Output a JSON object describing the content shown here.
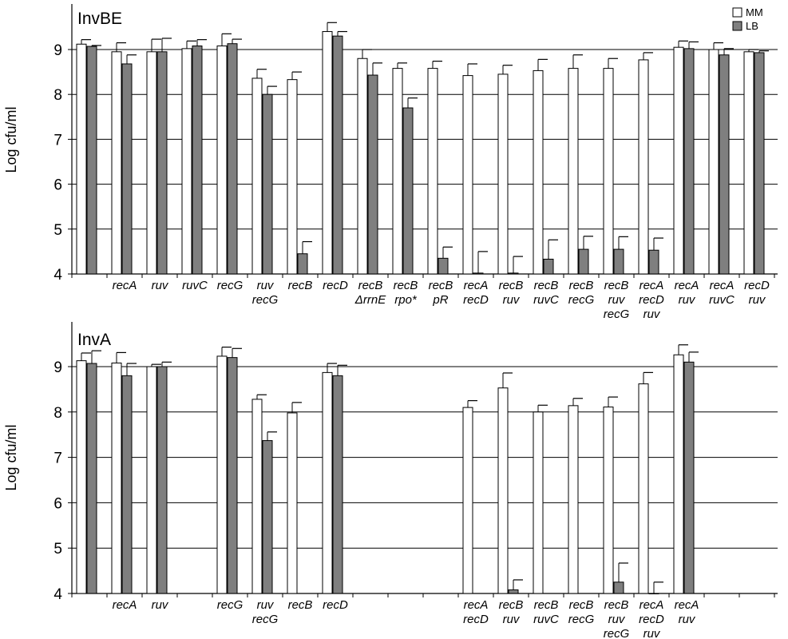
{
  "chart_data": [
    {
      "type": "bar",
      "title": "InvBE",
      "ylabel": "Log cfu/ml",
      "ylim": [
        4,
        10
      ],
      "yticks": [
        4,
        5,
        6,
        7,
        8,
        9
      ],
      "grid": true,
      "legend_position": "top-right",
      "series_colors": [
        "#ffffff",
        "#7f7f7f"
      ],
      "categories": [
        [
          ""
        ],
        [
          "recA"
        ],
        [
          "ruv"
        ],
        [
          "ruvC"
        ],
        [
          "recG"
        ],
        [
          "ruv",
          "recG"
        ],
        [
          "recB"
        ],
        [
          "recD"
        ],
        [
          "recB",
          "ΔrrnE"
        ],
        [
          "recB",
          "rpo*"
        ],
        [
          "recB",
          "pR"
        ],
        [
          "recA",
          "recD"
        ],
        [
          "recB",
          "ruv"
        ],
        [
          "recB",
          "ruvC"
        ],
        [
          "recB",
          "recG"
        ],
        [
          "recB",
          "ruv",
          "recG"
        ],
        [
          "recA",
          "recD",
          "ruv"
        ],
        [
          "recA",
          "ruv"
        ],
        [
          "recA",
          "ruvC"
        ],
        [
          "recD",
          "ruv"
        ]
      ],
      "series": [
        {
          "name": "MM",
          "values": [
            9.12,
            8.95,
            8.95,
            9.02,
            9.08,
            8.36,
            8.33,
            9.4,
            8.8,
            8.58,
            8.58,
            8.42,
            8.45,
            8.53,
            8.58,
            8.58,
            8.77,
            9.05,
            9.0,
            8.95
          ],
          "errors": [
            0.1,
            0.2,
            0.28,
            0.17,
            0.27,
            0.2,
            0.17,
            0.2,
            0.2,
            0.12,
            0.16,
            0.26,
            0.2,
            0.25,
            0.3,
            0.22,
            0.16,
            0.14,
            0.15,
            0.05
          ]
        },
        {
          "name": "LB",
          "values": [
            9.07,
            8.68,
            8.95,
            9.08,
            9.13,
            8.0,
            4.45,
            9.3,
            8.43,
            7.7,
            4.35,
            4.02,
            4.02,
            4.33,
            4.55,
            4.55,
            4.53,
            9.02,
            8.88,
            8.93
          ],
          "errors": [
            0.02,
            0.2,
            0.3,
            0.14,
            0.1,
            0.18,
            0.27,
            0.1,
            0.27,
            0.22,
            0.25,
            0.48,
            0.37,
            0.43,
            0.29,
            0.28,
            0.27,
            0.15,
            0.14,
            0.04
          ]
        }
      ]
    },
    {
      "type": "bar",
      "title": "InvA",
      "ylabel": "Log cfu/ml",
      "ylim": [
        4,
        9.9
      ],
      "yticks": [
        4,
        5,
        6,
        7,
        8,
        9
      ],
      "grid": true,
      "series_colors": [
        "#ffffff",
        "#7f7f7f"
      ],
      "categories": [
        [
          ""
        ],
        [
          "recA"
        ],
        [
          "ruv"
        ],
        [
          ""
        ],
        [
          "recG"
        ],
        [
          "ruv",
          "recG"
        ],
        [
          "recB"
        ],
        [
          "recD"
        ],
        [
          ""
        ],
        [
          ""
        ],
        [
          ""
        ],
        [
          "recA",
          "recD"
        ],
        [
          "recB",
          "ruv"
        ],
        [
          "recB",
          "ruvC"
        ],
        [
          "recB",
          "recG"
        ],
        [
          "recB",
          "ruv",
          "recG"
        ],
        [
          "recA",
          "recD",
          "ruv"
        ],
        [
          "recA",
          "ruv"
        ],
        [
          ""
        ],
        [
          ""
        ]
      ],
      "series": [
        {
          "name": "MM",
          "values": [
            9.13,
            9.08,
            9.0,
            null,
            9.23,
            8.28,
            7.98,
            8.87,
            null,
            null,
            null,
            8.1,
            8.53,
            8.0,
            8.14,
            8.11,
            8.62,
            9.26,
            null,
            null
          ],
          "errors": [
            0.17,
            0.23,
            0.05,
            null,
            0.2,
            0.1,
            0.23,
            0.2,
            null,
            null,
            null,
            0.15,
            0.33,
            0.15,
            0.16,
            0.22,
            0.25,
            0.22,
            null,
            null
          ]
        },
        {
          "name": "LB",
          "values": [
            9.07,
            8.8,
            9.0,
            null,
            9.2,
            7.37,
            null,
            8.8,
            null,
            null,
            null,
            null,
            4.08,
            null,
            null,
            4.25,
            4.0,
            9.1,
            null,
            null
          ],
          "errors": [
            0.28,
            0.27,
            0.1,
            null,
            0.2,
            0.19,
            null,
            0.23,
            null,
            null,
            null,
            null,
            0.22,
            null,
            null,
            0.42,
            0.25,
            0.22,
            null,
            null
          ]
        }
      ]
    }
  ]
}
